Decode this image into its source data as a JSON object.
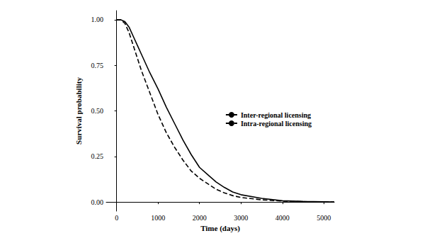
{
  "chart_data": {
    "type": "line",
    "x_label": "Time (days)",
    "y_label": "Survival probability",
    "x": [
      0,
      100,
      200,
      300,
      400,
      500,
      600,
      800,
      1000,
      1200,
      1400,
      1600,
      1800,
      2000,
      2200,
      2400,
      2600,
      2800,
      3000,
      3500,
      4000,
      4500,
      5250
    ],
    "series": [
      {
        "name": "Inter-regional licensing",
        "color": "#000000",
        "line_style": "solid",
        "values": [
          1.0,
          1.0,
          0.99,
          0.96,
          0.91,
          0.86,
          0.81,
          0.71,
          0.62,
          0.52,
          0.43,
          0.34,
          0.26,
          0.19,
          0.15,
          0.11,
          0.08,
          0.055,
          0.04,
          0.02,
          0.007,
          0.003,
          0.0
        ]
      },
      {
        "name": "Intra-regional licensing",
        "color": "#000000",
        "line_style": "dashed",
        "values": [
          1.0,
          1.0,
          0.98,
          0.93,
          0.86,
          0.79,
          0.72,
          0.6,
          0.48,
          0.38,
          0.3,
          0.23,
          0.17,
          0.13,
          0.1,
          0.07,
          0.05,
          0.035,
          0.025,
          0.012,
          0.005,
          0.002,
          0.0
        ]
      }
    ],
    "xlim": [
      -250,
      5250
    ],
    "xticks": [
      0,
      1000,
      2000,
      3000,
      4000,
      5000
    ],
    "ylim": [
      -0.05,
      1.05
    ],
    "yticks": [
      {
        "value": 0,
        "label": "0.00"
      },
      {
        "value": 0.25,
        "label": "0.25"
      },
      {
        "value": 0.5,
        "label": "0.50"
      },
      {
        "value": 0.75,
        "label": "0.75"
      },
      {
        "value": 1,
        "label": "1.00"
      }
    ],
    "grid": false,
    "legend": "right"
  }
}
